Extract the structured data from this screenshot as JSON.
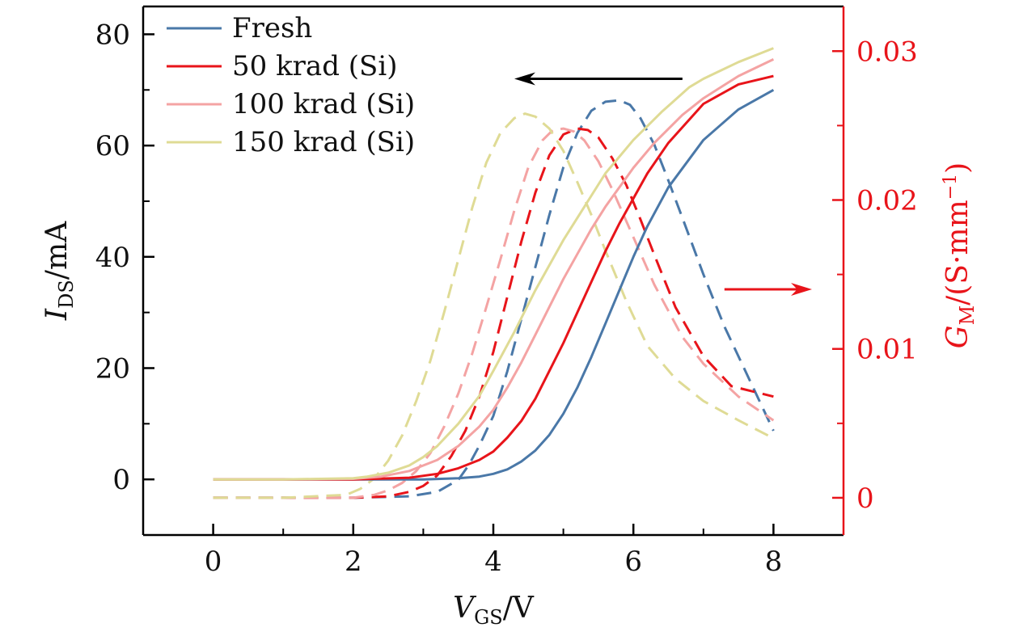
{
  "chart_data": {
    "type": "line",
    "xlabel": {
      "main": "V",
      "sub": "GS",
      "unit": "/V"
    },
    "ylabel_left": {
      "main": "I",
      "sub": "DS",
      "unit": "/mA"
    },
    "ylabel_right": {
      "main": "G",
      "sub": "M",
      "unit_open": "/(S·mm",
      "unit_sup": "−1",
      "unit_close": ")"
    },
    "xlim": [
      -1,
      9
    ],
    "ylim_left": [
      -10,
      85
    ],
    "ylim_right": [
      -0.0025,
      0.033
    ],
    "x_ticks": [
      0,
      2,
      4,
      6,
      8
    ],
    "x_tick_labels": [
      "0",
      "2",
      "4",
      "6",
      "8"
    ],
    "y_left_ticks": [
      0,
      20,
      40,
      60,
      80
    ],
    "y_left_tick_labels": [
      "0",
      "20",
      "40",
      "60",
      "80"
    ],
    "y_right_ticks": [
      0,
      0.01,
      0.02,
      0.03
    ],
    "y_right_tick_labels": [
      "0",
      "0.01",
      "0.02",
      "0.03"
    ],
    "arrows": [
      {
        "direction": "left",
        "axis": "left",
        "x_from": 6.7,
        "x_to": 4.3,
        "y": 72,
        "color": "#000000"
      },
      {
        "direction": "right",
        "axis": "right",
        "x_from": 7.3,
        "x_to": 8.55,
        "y": 0.014,
        "color": "#e8141a"
      }
    ],
    "series": [
      {
        "name": "Fresh",
        "color": "#4a78a8",
        "ids": {
          "x": [
            0,
            1,
            2,
            3,
            3.5,
            3.8,
            4.0,
            4.2,
            4.4,
            4.6,
            4.8,
            5.0,
            5.2,
            5.4,
            5.6,
            5.8,
            6.0,
            6.2,
            6.5,
            7.0,
            7.5,
            8.0
          ],
          "y": [
            0,
            0,
            0,
            0,
            0.2,
            0.5,
            1.0,
            1.8,
            3.2,
            5.2,
            8.0,
            11.8,
            16.5,
            22,
            28,
            34,
            40,
            45.5,
            52.5,
            61,
            66.5,
            70
          ]
        },
        "gm": {
          "x": [
            0,
            1,
            2,
            2.8,
            3.2,
            3.5,
            3.65,
            3.8,
            4.0,
            4.2,
            4.4,
            4.6,
            4.8,
            5.0,
            5.2,
            5.4,
            5.6,
            5.8,
            5.95,
            6.1,
            6.3,
            6.5,
            6.7,
            7.0,
            7.3,
            7.6,
            8.0
          ],
          "y": [
            0,
            0,
            0,
            0.0001,
            0.0004,
            0.0012,
            0.0022,
            0.0035,
            0.0055,
            0.0085,
            0.012,
            0.0155,
            0.019,
            0.0222,
            0.0245,
            0.026,
            0.0266,
            0.0267,
            0.0264,
            0.0255,
            0.0237,
            0.0213,
            0.0188,
            0.015,
            0.0115,
            0.0085,
            0.0045
          ]
        }
      },
      {
        "name": "50 krad (Si)",
        "color": "#e8141a",
        "ids": {
          "x": [
            0,
            1,
            2,
            2.8,
            3.2,
            3.5,
            3.8,
            4.0,
            4.2,
            4.4,
            4.6,
            4.8,
            5.0,
            5.2,
            5.4,
            5.6,
            5.8,
            6.0,
            6.2,
            6.5,
            7.0,
            7.5,
            8.0
          ],
          "y": [
            0,
            0,
            0,
            0.3,
            1.0,
            2.0,
            3.5,
            5.0,
            7.5,
            10.5,
            14.5,
            19.5,
            24.5,
            30,
            35.5,
            41,
            46,
            50.5,
            55,
            60.5,
            67.5,
            71,
            72.5
          ]
        },
        "gm": {
          "x": [
            0,
            1,
            2,
            2.5,
            2.8,
            3.0,
            3.2,
            3.4,
            3.6,
            3.8,
            4.0,
            4.2,
            4.4,
            4.6,
            4.8,
            5.0,
            5.2,
            5.35,
            5.5,
            5.7,
            5.9,
            6.1,
            6.3,
            6.6,
            7.0,
            7.4,
            8.0
          ],
          "y": [
            0,
            0,
            0,
            0.0001,
            0.0004,
            0.0008,
            0.0015,
            0.0028,
            0.0045,
            0.0068,
            0.0098,
            0.0135,
            0.0172,
            0.0205,
            0.023,
            0.0244,
            0.0248,
            0.0247,
            0.0242,
            0.0228,
            0.021,
            0.0187,
            0.0163,
            0.0128,
            0.0095,
            0.0075,
            0.0068
          ]
        }
      },
      {
        "name": "100 krad (Si)",
        "color": "#f4a3a3",
        "ids": {
          "x": [
            0,
            1,
            2,
            2.4,
            2.8,
            3.2,
            3.5,
            3.8,
            4.0,
            4.2,
            4.4,
            4.6,
            4.8,
            5.0,
            5.2,
            5.4,
            5.6,
            5.8,
            6.0,
            6.3,
            6.7,
            7.0,
            7.5,
            8.0
          ],
          "y": [
            0,
            0,
            0.1,
            0.5,
            1.5,
            3.5,
            6.0,
            9.5,
            12.5,
            16.5,
            21,
            26,
            31,
            36,
            40.5,
            45,
            49,
            52.5,
            56,
            60.5,
            65.5,
            68.5,
            72.5,
            75.5
          ]
        },
        "gm": {
          "x": [
            0,
            1,
            2,
            2.3,
            2.5,
            2.7,
            2.9,
            3.1,
            3.3,
            3.5,
            3.7,
            3.9,
            4.1,
            4.3,
            4.5,
            4.7,
            4.85,
            5.0,
            5.15,
            5.3,
            5.5,
            5.7,
            6.0,
            6.3,
            6.7,
            7.0,
            7.5,
            8.0
          ],
          "y": [
            0,
            0,
            0,
            0.0002,
            0.0005,
            0.001,
            0.0018,
            0.003,
            0.0048,
            0.007,
            0.0097,
            0.0128,
            0.016,
            0.0193,
            0.0222,
            0.024,
            0.0247,
            0.0248,
            0.0246,
            0.024,
            0.0226,
            0.0207,
            0.0175,
            0.0143,
            0.0108,
            0.009,
            0.0068,
            0.0052
          ]
        }
      },
      {
        "name": "150 krad (Si)",
        "color": "#dfdb95",
        "ids": {
          "x": [
            0,
            1,
            2,
            2.2,
            2.5,
            2.8,
            3.0,
            3.2,
            3.5,
            3.8,
            4.0,
            4.3,
            4.6,
            5.0,
            5.3,
            5.6,
            6.0,
            6.4,
            6.8,
            7.0,
            7.5,
            8.0
          ],
          "y": [
            0,
            0,
            0.2,
            0.5,
            1.2,
            2.5,
            4.0,
            6.0,
            10.0,
            15.0,
            19.5,
            26.5,
            34,
            43,
            49,
            55,
            61,
            66,
            70.5,
            72,
            75,
            77.5
          ]
        },
        "gm": {
          "x": [
            0,
            1,
            1.9,
            2.1,
            2.3,
            2.5,
            2.7,
            2.9,
            3.1,
            3.3,
            3.5,
            3.7,
            3.9,
            4.1,
            4.3,
            4.45,
            4.6,
            4.8,
            5.0,
            5.2,
            5.4,
            5.6,
            5.9,
            6.2,
            6.6,
            7.0,
            7.5,
            8.0
          ],
          "y": [
            0,
            0,
            0.0002,
            0.0006,
            0.0013,
            0.0025,
            0.0042,
            0.0065,
            0.0092,
            0.0125,
            0.016,
            0.0195,
            0.0225,
            0.0245,
            0.0255,
            0.0258,
            0.0256,
            0.0248,
            0.0233,
            0.0212,
            0.019,
            0.0166,
            0.0132,
            0.0102,
            0.008,
            0.0065,
            0.0052,
            0.004
          ]
        }
      }
    ]
  }
}
